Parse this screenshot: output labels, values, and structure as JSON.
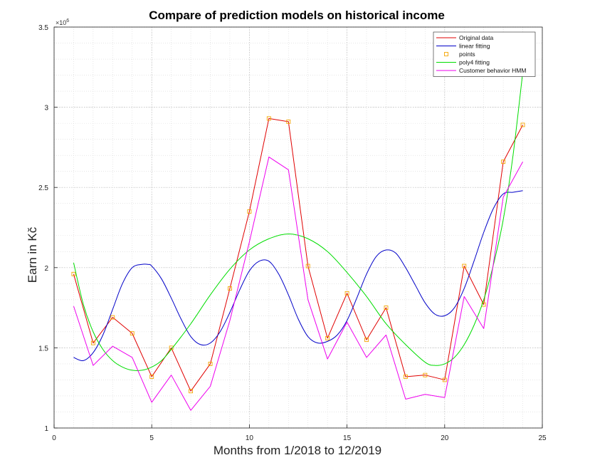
{
  "chart_data": {
    "type": "line",
    "title": "Compare of prediction models on historical income",
    "xlabel": "Months from 1/2018 to 12/2019",
    "ylabel": "Earn in Kč",
    "y_multiplier_label": "×10",
    "y_multiplier_exp": "6",
    "xlim": [
      0,
      25
    ],
    "ylim": [
      1,
      3.5
    ],
    "x_ticks": [
      0,
      5,
      10,
      15,
      20,
      25
    ],
    "y_ticks": [
      1,
      1.5,
      2,
      2.5,
      3,
      3.5
    ],
    "x_tick_labels": [
      "0",
      "5",
      "10",
      "15",
      "20",
      "25"
    ],
    "y_tick_labels": [
      "1",
      "1.5",
      "2",
      "2.5",
      "3",
      "3.5"
    ],
    "grid": true,
    "minor_grid": true,
    "legend_position": "top-right",
    "series": [
      {
        "name": "Original data",
        "kind": "line",
        "color": "#e00000",
        "x": [
          1,
          2,
          3,
          4,
          5,
          6,
          7,
          8,
          9,
          10,
          11,
          12,
          13,
          14,
          15,
          16,
          17,
          18,
          19,
          20,
          21,
          22,
          23,
          24
        ],
        "values": [
          1.96,
          1.53,
          1.69,
          1.59,
          1.32,
          1.5,
          1.23,
          1.4,
          1.87,
          2.35,
          2.93,
          2.91,
          2.01,
          1.56,
          1.84,
          1.55,
          1.75,
          1.32,
          1.33,
          1.3,
          2.01,
          1.77,
          2.66,
          2.89
        ]
      },
      {
        "name": "linear fitting",
        "kind": "line",
        "color": "#0000c8",
        "x": [
          1,
          1.5,
          2,
          2.5,
          3,
          3.5,
          4,
          4.5,
          4.8,
          5,
          5.5,
          6,
          6.5,
          7,
          7.5,
          8,
          8.5,
          9,
          9.5,
          10,
          10.5,
          11,
          11.5,
          12,
          12.5,
          13,
          13.5,
          14,
          14.5,
          15,
          15.5,
          16,
          16.5,
          17,
          17.5,
          18,
          18.5,
          19,
          19.5,
          20,
          20.5,
          21,
          21.5,
          22,
          22.5,
          23,
          23.5,
          24
        ],
        "values": [
          1.44,
          1.42,
          1.47,
          1.58,
          1.74,
          1.9,
          2.0,
          2.02,
          2.02,
          2.01,
          1.93,
          1.81,
          1.68,
          1.57,
          1.52,
          1.53,
          1.6,
          1.72,
          1.86,
          1.98,
          2.04,
          2.04,
          1.96,
          1.83,
          1.68,
          1.57,
          1.53,
          1.54,
          1.58,
          1.67,
          1.81,
          1.96,
          2.07,
          2.11,
          2.09,
          2.0,
          1.89,
          1.78,
          1.71,
          1.7,
          1.75,
          1.87,
          2.04,
          2.22,
          2.37,
          2.46,
          2.47,
          2.48
        ]
      },
      {
        "name": "points",
        "kind": "markers",
        "color": "#f4a500",
        "x": [
          1,
          2,
          3,
          4,
          5,
          6,
          7,
          8,
          9,
          10,
          11,
          12,
          13,
          14,
          15,
          16,
          17,
          18,
          19,
          20,
          21,
          22,
          23,
          24
        ],
        "values": [
          1.96,
          1.53,
          1.69,
          1.59,
          1.32,
          1.5,
          1.23,
          1.4,
          1.87,
          2.35,
          2.93,
          2.91,
          2.01,
          1.56,
          1.84,
          1.55,
          1.75,
          1.32,
          1.33,
          1.3,
          2.01,
          1.77,
          2.66,
          2.89
        ]
      },
      {
        "name": "poly4 fitting",
        "kind": "line",
        "color": "#00dd00",
        "x": [
          1,
          1.5,
          2,
          2.5,
          3,
          3.5,
          4,
          4.5,
          5,
          5.5,
          6,
          7,
          8,
          9,
          10,
          11,
          12,
          13,
          14,
          15,
          16,
          17,
          18,
          19,
          19.5,
          20,
          20.5,
          21,
          21.5,
          22,
          22.5,
          23,
          23.5,
          24
        ],
        "values": [
          2.03,
          1.77,
          1.6,
          1.49,
          1.42,
          1.38,
          1.36,
          1.36,
          1.38,
          1.42,
          1.49,
          1.65,
          1.83,
          1.99,
          2.11,
          2.18,
          2.21,
          2.18,
          2.1,
          1.97,
          1.82,
          1.65,
          1.52,
          1.41,
          1.39,
          1.4,
          1.44,
          1.52,
          1.64,
          1.8,
          2.02,
          2.3,
          2.7,
          3.22
        ]
      },
      {
        "name": "Customer behavior HMM",
        "kind": "line",
        "color": "#ee00ee",
        "x": [
          1,
          2,
          3,
          4,
          5,
          6,
          7,
          8,
          9,
          10,
          11,
          12,
          13,
          14,
          15,
          16,
          17,
          18,
          19,
          20,
          21,
          22,
          23,
          24
        ],
        "values": [
          1.76,
          1.39,
          1.51,
          1.44,
          1.16,
          1.33,
          1.11,
          1.26,
          1.67,
          2.16,
          2.69,
          2.61,
          1.8,
          1.43,
          1.66,
          1.44,
          1.58,
          1.18,
          1.21,
          1.19,
          1.82,
          1.62,
          2.44,
          2.66
        ]
      }
    ]
  }
}
